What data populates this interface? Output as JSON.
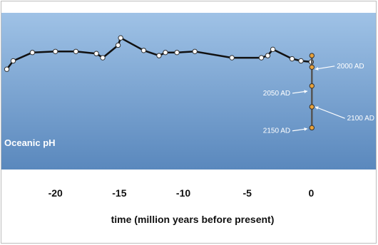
{
  "chart_data": {
    "type": "line",
    "title": "",
    "panel_label": "Oceanic pH",
    "xlabel": "time (million years before present)",
    "ylabel": "",
    "xlim": [
      -24.5,
      6
    ],
    "ylim": [
      7.6,
      8.35
    ],
    "x_ticks": [
      {
        "value": -20,
        "label": "-20"
      },
      {
        "value": -15,
        "label": "-15"
      },
      {
        "value": -10,
        "label": "-10"
      },
      {
        "value": -5,
        "label": "-5"
      },
      {
        "value": 0,
        "label": "0"
      }
    ],
    "series": [
      {
        "color": "#111111",
        "marker_color": "#ffffff",
        "points": [
          {
            "x": -23.8,
            "y": 8.08
          },
          {
            "x": -23.3,
            "y": 8.12
          },
          {
            "x": -21.8,
            "y": 8.16
          },
          {
            "x": -20.0,
            "y": 8.165
          },
          {
            "x": -18.4,
            "y": 8.165
          },
          {
            "x": -16.8,
            "y": 8.155
          },
          {
            "x": -16.3,
            "y": 8.135
          },
          {
            "x": -15.1,
            "y": 8.195
          },
          {
            "x": -14.9,
            "y": 8.23
          },
          {
            "x": -13.1,
            "y": 8.17
          },
          {
            "x": -11.9,
            "y": 8.145
          },
          {
            "x": -11.4,
            "y": 8.16
          },
          {
            "x": -10.5,
            "y": 8.16
          },
          {
            "x": -9.1,
            "y": 8.165
          },
          {
            "x": -6.2,
            "y": 8.135
          },
          {
            "x": -3.9,
            "y": 8.135
          },
          {
            "x": -3.4,
            "y": 8.145
          },
          {
            "x": -3.0,
            "y": 8.175
          },
          {
            "x": -1.5,
            "y": 8.13
          },
          {
            "x": -0.8,
            "y": 8.12
          },
          {
            "x": 0.0,
            "y": 8.115
          }
        ]
      },
      {
        "color": "#555555",
        "marker_color": "#e8a13a",
        "points": [
          {
            "x": 0.05,
            "y": 8.145
          },
          {
            "x": 0.05,
            "y": 8.09
          },
          {
            "x": 0.05,
            "y": 8.0
          },
          {
            "x": 0.05,
            "y": 7.9
          },
          {
            "x": 0.05,
            "y": 7.8
          }
        ]
      }
    ],
    "annotations": [
      {
        "text": "2000 AD",
        "x": 2.0,
        "y": 8.095,
        "arrow_to_x": 0.3,
        "arrow_to_y": 8.08
      },
      {
        "text": "2050 AD",
        "x": -2.7,
        "y": 7.965,
        "arrow_to_x": -0.3,
        "arrow_to_y": 7.975
      },
      {
        "text": "2100 AD",
        "x": 2.8,
        "y": 7.845,
        "arrow_to_x": 0.3,
        "arrow_to_y": 7.9
      },
      {
        "text": "2150 AD",
        "x": -2.7,
        "y": 7.785,
        "arrow_to_x": -0.3,
        "arrow_to_y": 7.795
      }
    ],
    "grid": false,
    "background_color_top": "#9fc2e6",
    "background_color_bottom": "#5a88bd"
  }
}
